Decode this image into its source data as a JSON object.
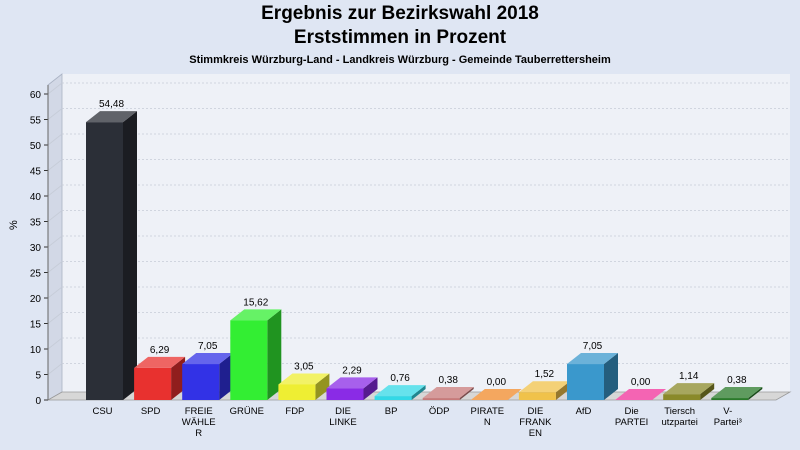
{
  "chart_data": {
    "type": "bar",
    "title": "Ergebnis zur Bezirkswahl 2018",
    "title_line2": "Erststimmen in Prozent",
    "subtitle": "Stimmkreis Würzburg-Land - Landkreis Würzburg - Gemeinde Tauberrettersheim",
    "ylabel": "%",
    "ylim": [
      0,
      60
    ],
    "yticks": [
      0,
      5,
      10,
      15,
      20,
      25,
      30,
      35,
      40,
      45,
      50,
      55,
      60
    ],
    "grid": true,
    "categories": [
      [
        "CSU"
      ],
      [
        "SPD"
      ],
      [
        "FREIE",
        "WÄHLE",
        "R"
      ],
      [
        "GRÜNE"
      ],
      [
        "FDP"
      ],
      [
        "DIE",
        "LINKE"
      ],
      [
        "BP"
      ],
      [
        "ÖDP"
      ],
      [
        "PIRATE",
        "N"
      ],
      [
        "DIE",
        "FRANK",
        "EN"
      ],
      [
        "AfD"
      ],
      [
        "Die",
        "PARTEI"
      ],
      [
        "Tiersch",
        "utzpartei"
      ],
      [
        "V-",
        "Partei³"
      ]
    ],
    "values": [
      54.48,
      6.29,
      7.05,
      15.62,
      3.05,
      2.29,
      0.76,
      0.38,
      0.0,
      1.52,
      7.05,
      0.0,
      1.14,
      0.38
    ],
    "value_labels": [
      "54,48",
      "6,29",
      "7,05",
      "15,62",
      "3,05",
      "2,29",
      "0,76",
      "0,38",
      "0,00",
      "1,52",
      "7,05",
      "0,00",
      "1,14",
      "0,38"
    ],
    "colors": [
      "#2b2f37",
      "#e8312f",
      "#3232e6",
      "#33ee33",
      "#eeee33",
      "#8a2be6",
      "#33d8e6",
      "#c77a7a",
      "#f08a2a",
      "#f0c24a",
      "#3a98cc",
      "#f0309a",
      "#8a8a2a",
      "#2a7a2a"
    ]
  }
}
